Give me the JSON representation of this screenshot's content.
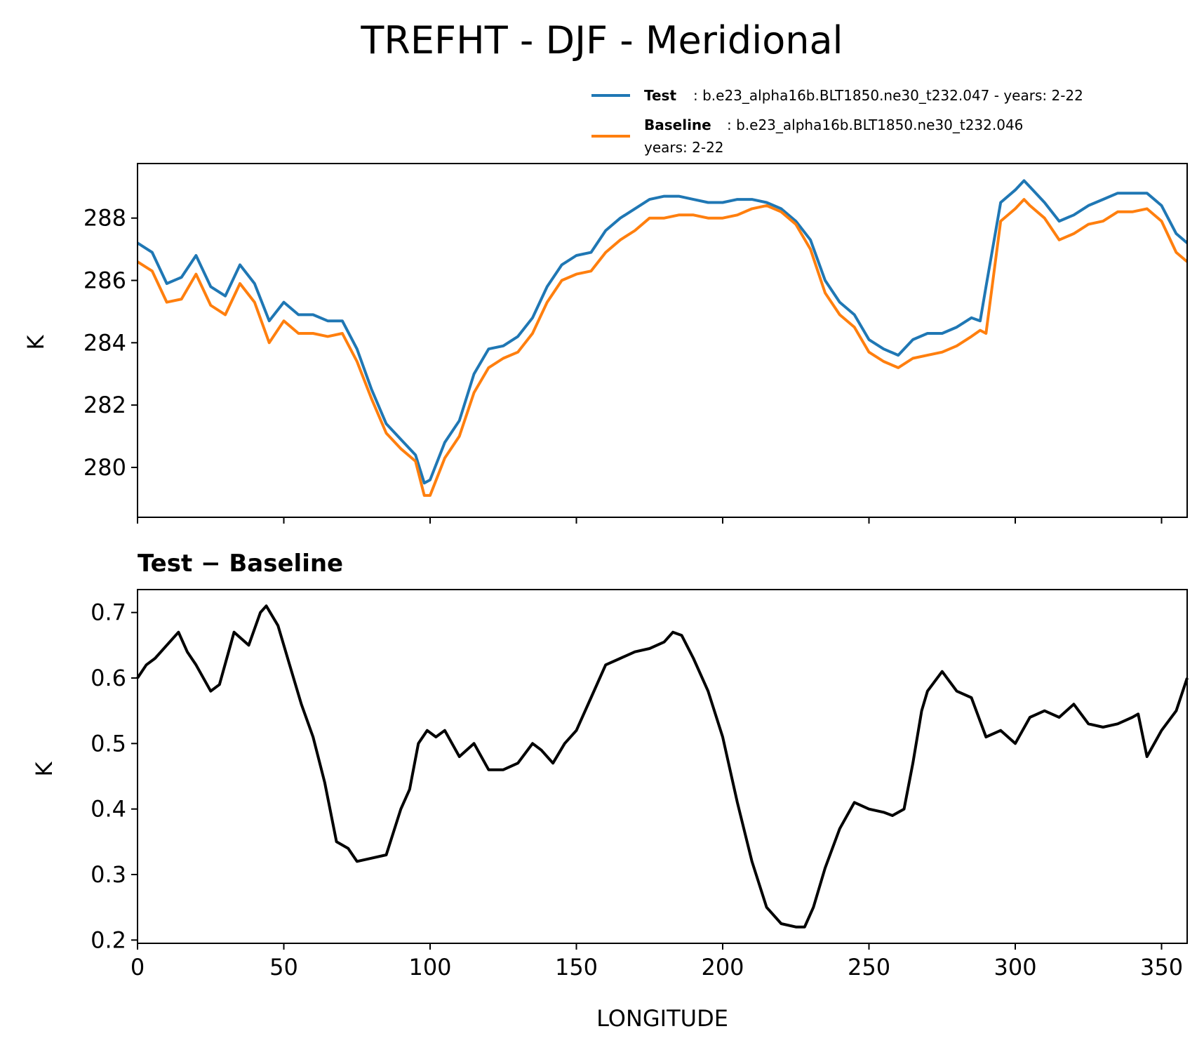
{
  "chart_data": [
    {
      "type": "line",
      "title": "TREFHT - DJF - Meridional",
      "xlabel": "",
      "ylabel": "K",
      "xlim": [
        0,
        358.75
      ],
      "ylim": [
        278.4,
        289.75
      ],
      "yticks": [
        280,
        282,
        284,
        286,
        288
      ],
      "xticks": [
        0,
        50,
        100,
        150,
        200,
        250,
        300,
        350
      ],
      "show_xtick_labels": false,
      "grid": false,
      "legend_position": "above-right",
      "legend": [
        {
          "bold": "Test",
          "text": ": b.e23_alpha16b.BLT1850.ne30_t232.047 - years: 2-22",
          "text2": ""
        },
        {
          "bold": "Baseline",
          "text": ": b.e23_alpha16b.BLT1850.ne30_t232.046",
          "text2": "years: 2-22"
        }
      ],
      "x": [
        0,
        5,
        10,
        15,
        20,
        25,
        30,
        35,
        40,
        45,
        50,
        55,
        60,
        65,
        70,
        75,
        80,
        85,
        90,
        95,
        98,
        100,
        105,
        110,
        115,
        120,
        125,
        130,
        135,
        140,
        145,
        150,
        155,
        160,
        165,
        170,
        175,
        180,
        185,
        190,
        195,
        200,
        205,
        210,
        215,
        220,
        225,
        230,
        235,
        240,
        245,
        250,
        255,
        260,
        265,
        270,
        275,
        280,
        285,
        288,
        290,
        295,
        300,
        303,
        305,
        310,
        315,
        320,
        325,
        330,
        335,
        340,
        345,
        350,
        355,
        358.75
      ],
      "series": [
        {
          "name": "Test",
          "color": "#1f77b4",
          "values": [
            287.2,
            286.9,
            285.9,
            286.1,
            286.8,
            285.8,
            285.5,
            286.5,
            285.9,
            284.7,
            285.3,
            284.9,
            284.9,
            284.7,
            284.7,
            283.8,
            282.5,
            281.4,
            280.9,
            280.4,
            279.5,
            279.6,
            280.8,
            281.5,
            283.0,
            283.8,
            283.9,
            284.2,
            284.8,
            285.8,
            286.5,
            286.8,
            286.9,
            287.6,
            288.0,
            288.3,
            288.6,
            288.7,
            288.7,
            288.6,
            288.5,
            288.5,
            288.6,
            288.6,
            288.5,
            288.3,
            287.9,
            287.3,
            286.0,
            285.3,
            284.9,
            284.1,
            283.8,
            283.6,
            284.1,
            284.3,
            284.3,
            284.5,
            284.8,
            284.7,
            285.8,
            288.5,
            288.9,
            289.2,
            289.0,
            288.5,
            287.9,
            288.1,
            288.4,
            288.6,
            288.8,
            288.8,
            288.8,
            288.4,
            287.5,
            287.2
          ]
        },
        {
          "name": "Baseline",
          "color": "#ff7f0e",
          "values": [
            286.6,
            286.3,
            285.3,
            285.4,
            286.2,
            285.2,
            284.9,
            285.9,
            285.3,
            284.0,
            284.7,
            284.3,
            284.3,
            284.2,
            284.3,
            283.4,
            282.2,
            281.1,
            280.6,
            280.2,
            279.1,
            279.1,
            280.3,
            281.0,
            282.4,
            283.2,
            283.5,
            283.7,
            284.3,
            285.3,
            286.0,
            286.2,
            286.3,
            286.9,
            287.3,
            287.6,
            288.0,
            288.0,
            288.1,
            288.1,
            288.0,
            288.0,
            288.1,
            288.3,
            288.4,
            288.2,
            287.8,
            287.0,
            285.6,
            284.9,
            284.5,
            283.7,
            283.4,
            283.2,
            283.5,
            283.6,
            283.7,
            283.9,
            284.2,
            284.4,
            284.3,
            287.9,
            288.3,
            288.6,
            288.4,
            288.0,
            287.3,
            287.5,
            287.8,
            287.9,
            288.2,
            288.2,
            288.3,
            287.9,
            286.9,
            286.6
          ]
        }
      ]
    },
    {
      "type": "line",
      "title": "Test − Baseline",
      "xlabel": "LONGITUDE",
      "ylabel": "K",
      "xlim": [
        0,
        358.75
      ],
      "ylim": [
        0.195,
        0.735
      ],
      "yticks": [
        0.2,
        0.3,
        0.4,
        0.5,
        0.6,
        0.7
      ],
      "ytick_labels": [
        "0.2",
        "0.3",
        "0.4",
        "0.5",
        "0.6",
        "0.7"
      ],
      "xticks": [
        0,
        50,
        100,
        150,
        200,
        250,
        300,
        350
      ],
      "show_xtick_labels": true,
      "grid": false,
      "x": [
        0,
        3,
        6,
        10,
        14,
        17,
        20,
        25,
        28,
        33,
        38,
        42,
        44,
        48,
        52,
        56,
        60,
        64,
        68,
        72,
        75,
        80,
        85,
        90,
        93,
        96,
        99,
        102,
        105,
        110,
        115,
        120,
        125,
        130,
        135,
        138,
        142,
        146,
        150,
        155,
        160,
        165,
        170,
        175,
        180,
        183,
        186,
        190,
        195,
        200,
        205,
        210,
        215,
        220,
        225,
        228,
        231,
        235,
        240,
        245,
        250,
        255,
        258,
        262,
        265,
        268,
        270,
        275,
        280,
        285,
        290,
        295,
        300,
        305,
        310,
        315,
        320,
        325,
        330,
        335,
        340,
        342,
        345,
        350,
        355,
        358.75
      ],
      "series": [
        {
          "name": "Test − Baseline",
          "color": "#000000",
          "values": [
            0.6,
            0.62,
            0.63,
            0.65,
            0.67,
            0.64,
            0.62,
            0.58,
            0.59,
            0.67,
            0.65,
            0.7,
            0.71,
            0.68,
            0.62,
            0.56,
            0.51,
            0.44,
            0.35,
            0.34,
            0.32,
            0.325,
            0.33,
            0.4,
            0.43,
            0.5,
            0.52,
            0.51,
            0.52,
            0.48,
            0.5,
            0.46,
            0.46,
            0.47,
            0.5,
            0.49,
            0.47,
            0.5,
            0.52,
            0.57,
            0.62,
            0.63,
            0.64,
            0.645,
            0.655,
            0.67,
            0.665,
            0.63,
            0.58,
            0.51,
            0.41,
            0.32,
            0.25,
            0.225,
            0.22,
            0.22,
            0.25,
            0.31,
            0.37,
            0.41,
            0.4,
            0.395,
            0.39,
            0.4,
            0.47,
            0.55,
            0.58,
            0.61,
            0.58,
            0.57,
            0.51,
            0.52,
            0.5,
            0.54,
            0.55,
            0.54,
            0.56,
            0.53,
            0.525,
            0.53,
            0.54,
            0.545,
            0.48,
            0.52,
            0.55,
            0.6
          ]
        }
      ]
    }
  ]
}
